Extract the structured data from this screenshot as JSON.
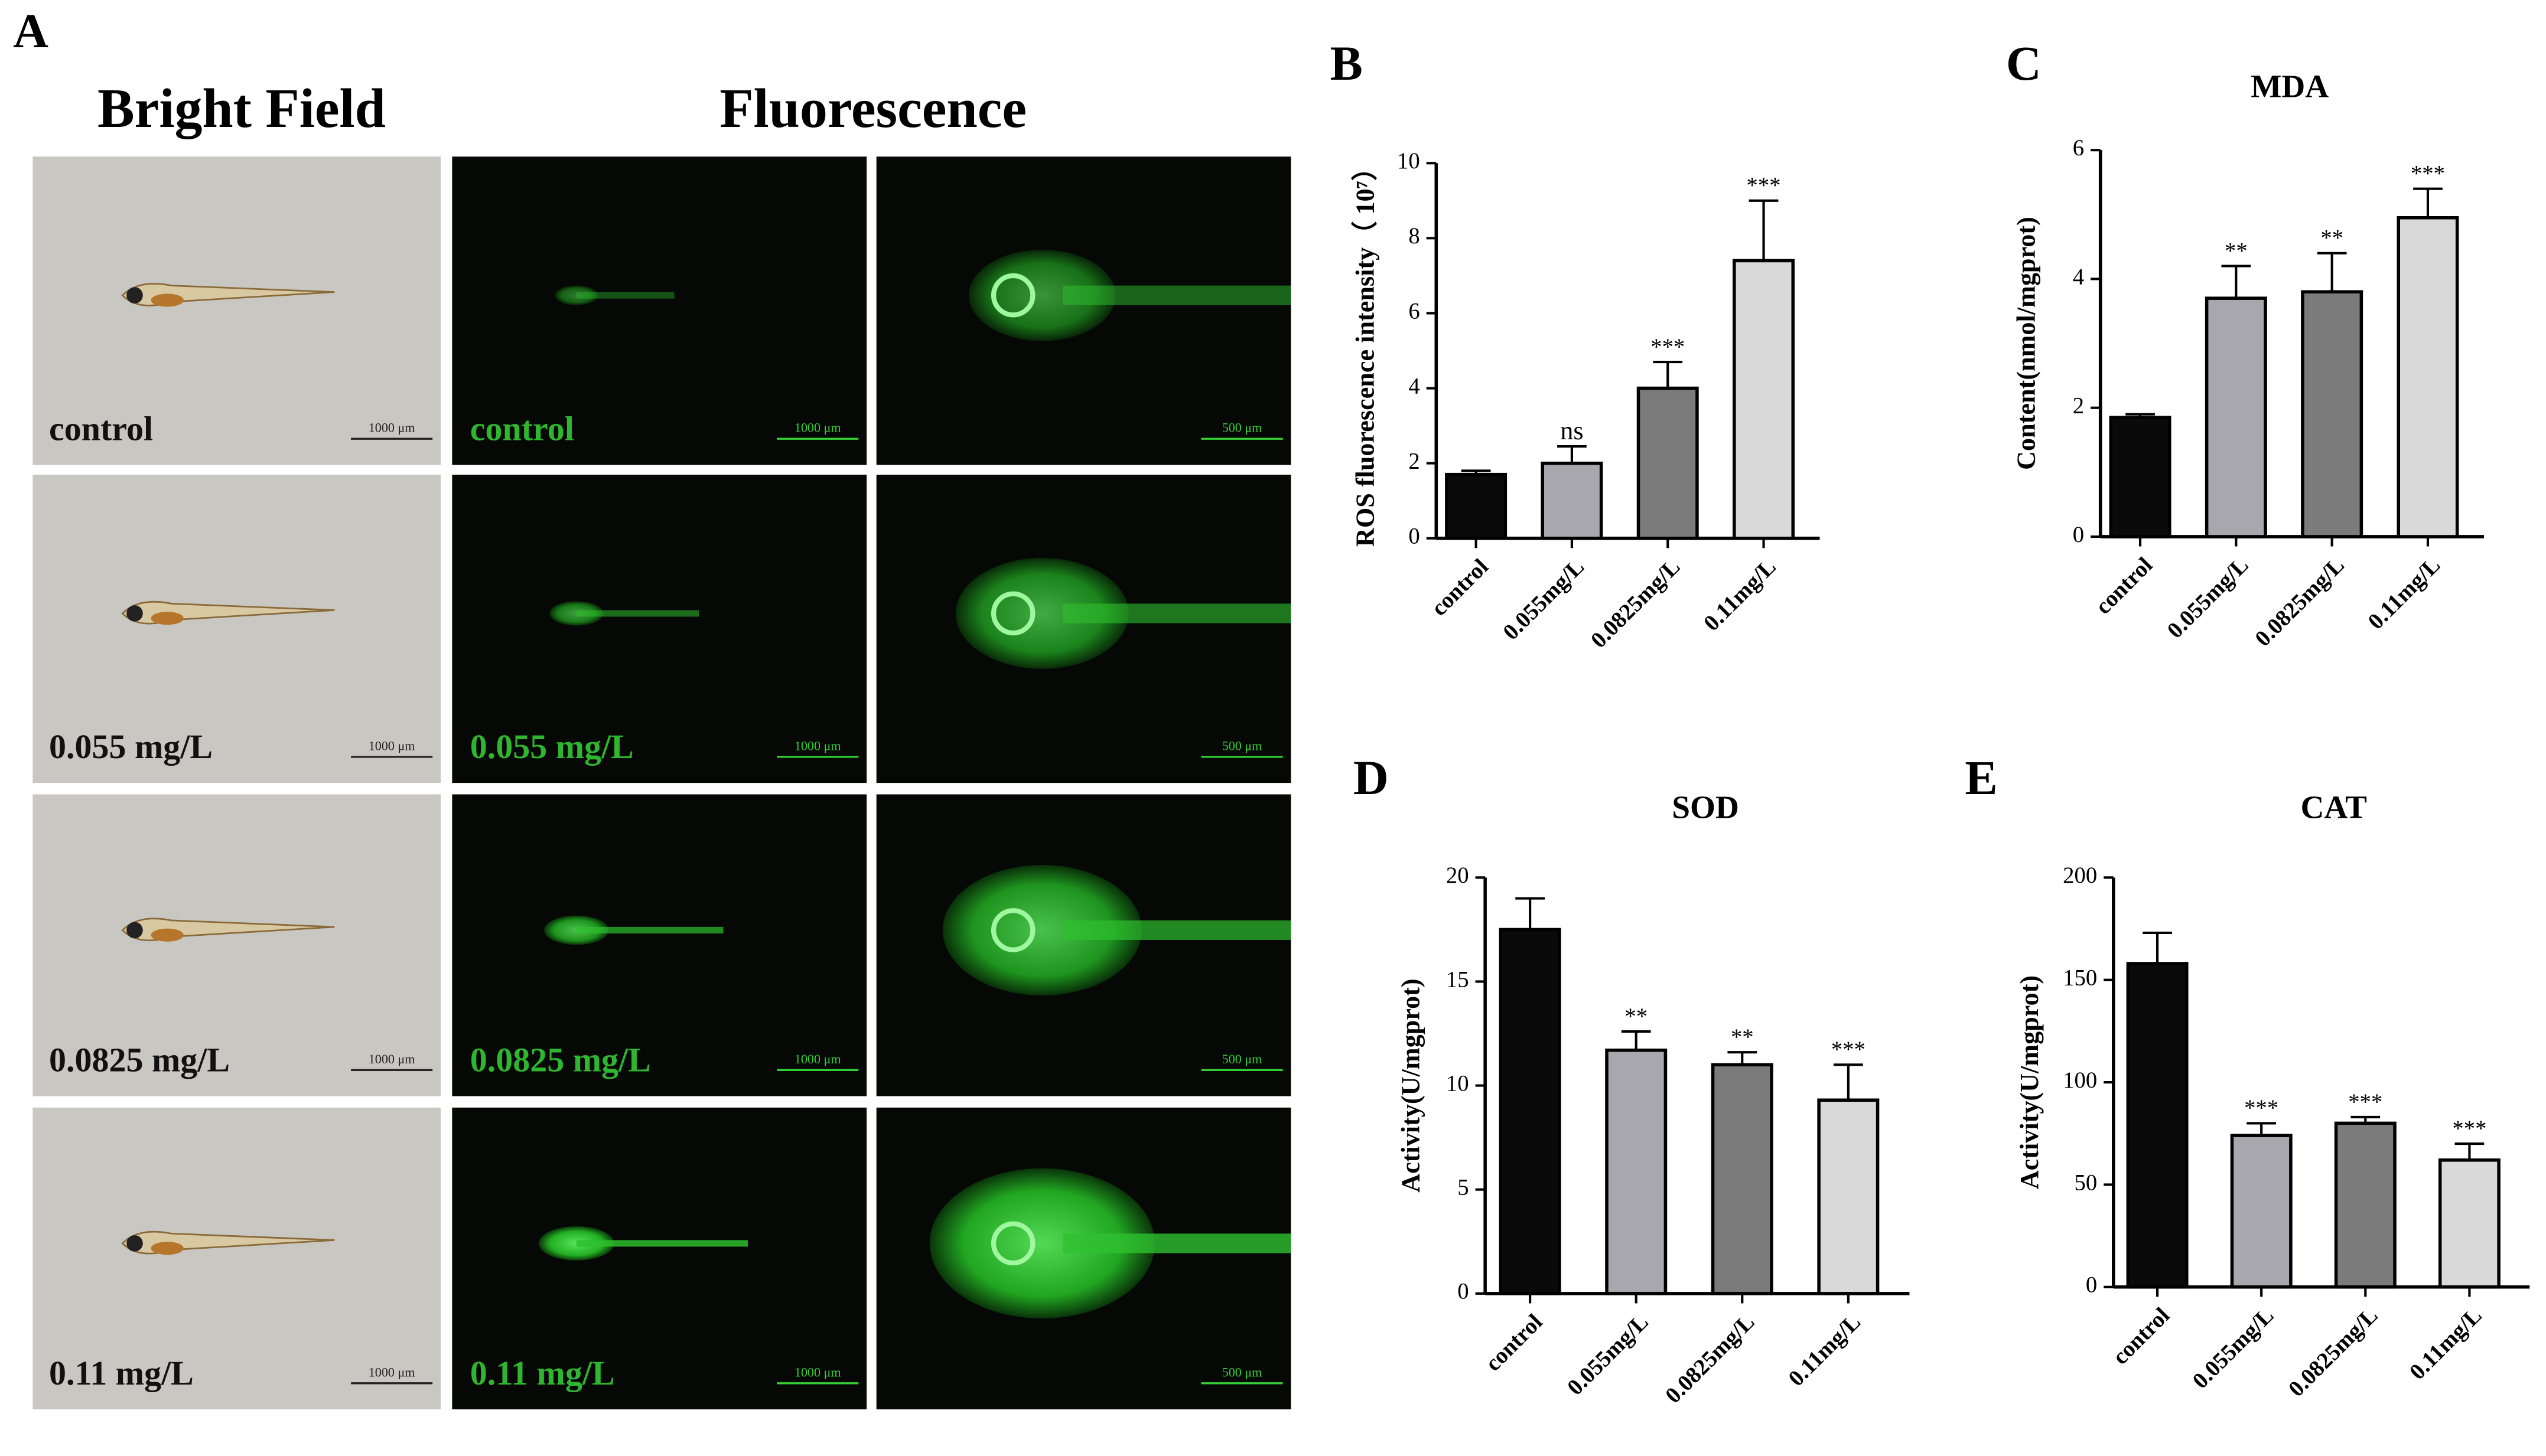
{
  "panel_a": {
    "letter": "A",
    "headers": [
      "Bright Field",
      "Fluorescence"
    ],
    "rows": [
      {
        "label": "control",
        "scale_bright": "1000 μm",
        "scale_fluo": "1000 μm",
        "scale_zoom": "500 μm"
      },
      {
        "label": "0.055 mg/L",
        "scale_bright": "1000 μm",
        "scale_fluo": "1000 μm",
        "scale_zoom": "500 μm"
      },
      {
        "label": "0.0825 mg/L",
        "scale_bright": "1000 μm",
        "scale_fluo": "1000 μm",
        "scale_zoom": "500 μm"
      },
      {
        "label": "0.11 mg/L",
        "scale_bright": "1000 μm",
        "scale_fluo": "1000 μm",
        "scale_zoom": "500 μm"
      }
    ]
  },
  "chart_data": [
    {
      "type": "bar",
      "panel": "B",
      "ylabel": "ROS fluorescence intensity（ 10⁷）",
      "categories": [
        "control",
        "0.055mg/L",
        "0.0825mg/L",
        "0.11mg/L"
      ],
      "values": [
        1.7,
        2.0,
        4.0,
        7.4
      ],
      "errors": [
        0.1,
        0.45,
        0.7,
        1.6
      ],
      "annotations": [
        null,
        "ns",
        "***",
        "***"
      ],
      "colors": [
        "#0a0a0a",
        "#a7a7ad",
        "#7b7b7b",
        "#d9d9d9"
      ],
      "ylim": [
        0,
        10
      ],
      "yticks": [
        0,
        2,
        4,
        6,
        8,
        10
      ]
    },
    {
      "type": "bar",
      "panel": "C",
      "title": "MDA",
      "ylabel": "Content(nmol/mgprot)",
      "categories": [
        "control",
        "0.055mg/L",
        "0.0825mg/L",
        "0.11mg/L"
      ],
      "values": [
        1.85,
        3.7,
        3.8,
        4.95
      ],
      "errors": [
        0.05,
        0.5,
        0.6,
        0.45
      ],
      "annotations": [
        null,
        "**",
        "**",
        "***"
      ],
      "colors": [
        "#0a0a0a",
        "#a7a7ad",
        "#7b7b7b",
        "#d9d9d9"
      ],
      "ylim": [
        0,
        6
      ],
      "yticks": [
        0,
        2,
        4,
        6
      ]
    },
    {
      "type": "bar",
      "panel": "D",
      "title": "SOD",
      "ylabel": "Activity(U/mgprot)",
      "categories": [
        "control",
        "0.055mg/L",
        "0.0825mg/L",
        "0.11mg/L"
      ],
      "values": [
        17.5,
        11.7,
        11.0,
        9.3
      ],
      "errors": [
        1.5,
        0.9,
        0.6,
        1.7
      ],
      "annotations": [
        null,
        "**",
        "**",
        "***"
      ],
      "colors": [
        "#0a0a0a",
        "#a7a7ad",
        "#7b7b7b",
        "#d9d9d9"
      ],
      "ylim": [
        0,
        20
      ],
      "yticks": [
        0,
        5,
        10,
        15,
        20
      ]
    },
    {
      "type": "bar",
      "panel": "E",
      "title": "CAT",
      "ylabel": "Activity(U/mgprot)",
      "categories": [
        "control",
        "0.055mg/L",
        "0.0825mg/L",
        "0.11mg/L"
      ],
      "values": [
        158,
        74,
        80,
        62
      ],
      "errors": [
        15,
        6,
        3,
        8
      ],
      "annotations": [
        null,
        "***",
        "***",
        "***"
      ],
      "colors": [
        "#0a0a0a",
        "#a7a7ad",
        "#7b7b7b",
        "#d9d9d9"
      ],
      "ylim": [
        0,
        200
      ],
      "yticks": [
        0,
        50,
        100,
        150,
        200
      ]
    }
  ]
}
